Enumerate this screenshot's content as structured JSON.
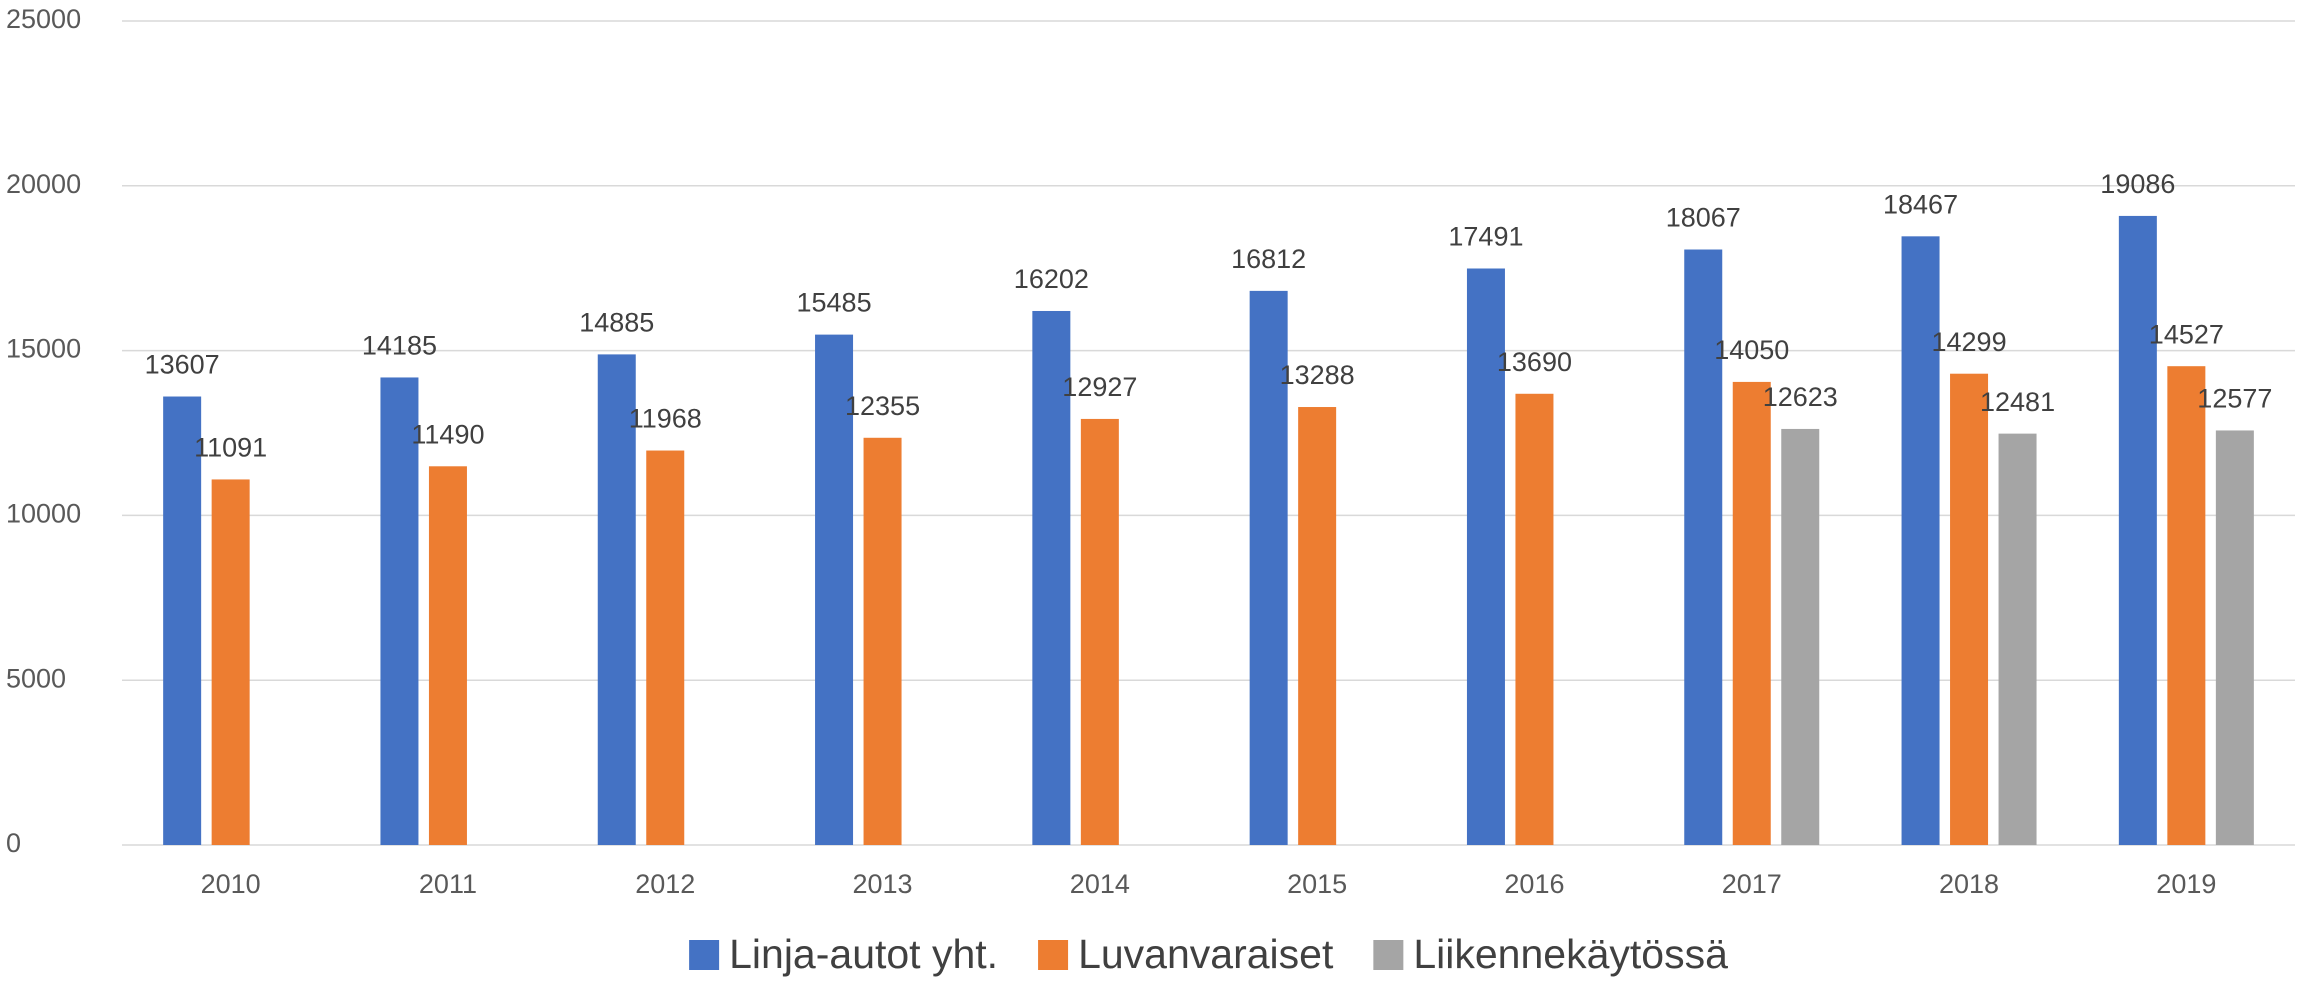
{
  "chart_data": {
    "type": "bar",
    "categories": [
      "2010",
      "2011",
      "2012",
      "2013",
      "2014",
      "2015",
      "2016",
      "2017",
      "2018",
      "2019"
    ],
    "series": [
      {
        "name": "Linja-autot yht.",
        "color": "#4472c4",
        "values": [
          13607,
          14185,
          14885,
          15485,
          16202,
          16812,
          17491,
          18067,
          18467,
          19086
        ]
      },
      {
        "name": "Luvanvaraiset",
        "color": "#ed7d31",
        "values": [
          11091,
          11490,
          11968,
          12355,
          12927,
          13288,
          13690,
          14050,
          14299,
          14527
        ]
      },
      {
        "name": "Liikennekäytössä",
        "color": "#a5a5a5",
        "values": [
          null,
          null,
          null,
          null,
          null,
          null,
          null,
          12623,
          12481,
          12577
        ]
      }
    ],
    "ylim": [
      0,
      25000
    ],
    "yticks": [
      0,
      5000,
      10000,
      15000,
      20000,
      25000
    ],
    "grid": true,
    "legend": "bottom"
  }
}
